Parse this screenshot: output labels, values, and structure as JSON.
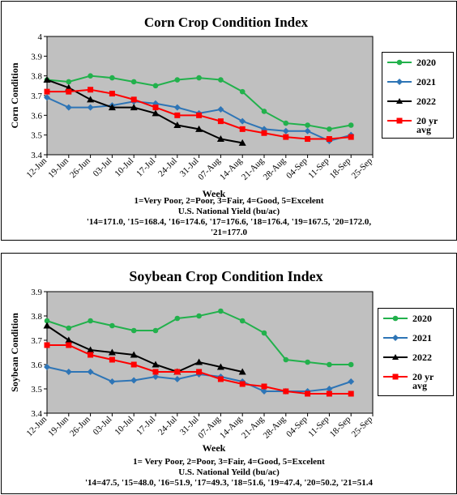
{
  "colors": {
    "plot_bg": "#c0c0c0",
    "s2020": "#22b14c",
    "s2021": "#2e75b6",
    "s2022": "#000000",
    "avg": "#ff0000"
  },
  "weeks": [
    "12-Jun",
    "19-Jun",
    "26-Jun",
    "03-Jul",
    "10-Jul",
    "17-Jul",
    "24-Jul",
    "31-Jul",
    "07-Aug",
    "14-Aug",
    "21-Aug",
    "28-Aug",
    "04-Sep",
    "11-Sep",
    "18-Sep",
    "25-Sep"
  ],
  "corn": {
    "xlabel": "Week",
    "notes": [
      "1=Very Poor, 2=Poor, 3=Fair, 4=Good, 5=Excelent",
      "U.S. National Yield (bu/ac)",
      "'14=171.0, '15=168.4, '16=174.6, '17=176.6, '18=176.4, '19=167.5, '20=172.0,",
      "'21=177.0"
    ]
  },
  "soy": {
    "xlabel": "Week",
    "notes": [
      "1= Very Poor, 2=Poor, 3=Fair, 4=Good, 5=Excelent",
      "U.S. National Yeild (bu/ac)",
      "'14=47.5, '15=48.0, '16=51.9, '17=49.3, '18=51.6, '19=47.4, '20=50.2, '21=51.4"
    ]
  },
  "chart_data": [
    {
      "type": "line",
      "title": "Corn Crop Condition Index",
      "xlabel": "Week",
      "ylabel": "Corn Condition",
      "ylim": [
        3.4,
        4
      ],
      "yticks": [
        "3.4",
        "3.5",
        "3.6",
        "3.7",
        "3.8",
        "3.9",
        "4"
      ],
      "grid": false,
      "legend": "right",
      "categories": [
        "12-Jun",
        "19-Jun",
        "26-Jun",
        "03-Jul",
        "10-Jul",
        "17-Jul",
        "24-Jul",
        "31-Jul",
        "07-Aug",
        "14-Aug",
        "21-Aug",
        "28-Aug",
        "04-Sep",
        "11-Sep",
        "18-Sep",
        "25-Sep"
      ],
      "series": [
        {
          "name": "2020",
          "marker": "circle",
          "values": [
            3.78,
            3.77,
            3.8,
            3.79,
            3.77,
            3.75,
            3.78,
            3.79,
            3.78,
            3.72,
            3.62,
            3.56,
            3.55,
            3.53,
            3.55,
            null
          ]
        },
        {
          "name": "2021",
          "marker": "diamond",
          "values": [
            3.69,
            3.64,
            3.64,
            3.65,
            3.67,
            3.66,
            3.64,
            3.61,
            3.63,
            3.57,
            3.53,
            3.52,
            3.52,
            3.47,
            3.5,
            null
          ]
        },
        {
          "name": "2022",
          "marker": "triangle",
          "values": [
            3.78,
            3.74,
            3.68,
            3.64,
            3.64,
            3.61,
            3.55,
            3.53,
            3.48,
            3.46,
            null,
            null,
            null,
            null,
            null,
            null
          ]
        },
        {
          "name": "20 yr avg",
          "marker": "square",
          "values": [
            3.72,
            3.72,
            3.73,
            3.71,
            3.68,
            3.64,
            3.6,
            3.6,
            3.57,
            3.53,
            3.51,
            3.49,
            3.48,
            3.48,
            3.49,
            null
          ]
        }
      ]
    },
    {
      "type": "line",
      "title": "Soybean Crop Condition Index",
      "xlabel": "Week",
      "ylabel": "Soybean Condition",
      "ylim": [
        3.4,
        3.9
      ],
      "yticks": [
        "3.4",
        "3.5",
        "3.6",
        "3.7",
        "3.8",
        "3.9"
      ],
      "grid": false,
      "legend": "right",
      "categories": [
        "12-Jun",
        "19-Jun",
        "26-Jun",
        "03-Jul",
        "10-Jul",
        "17-Jul",
        "24-Jul",
        "31-Jul",
        "07-Aug",
        "14-Aug",
        "21-Aug",
        "28-Aug",
        "04-Sep",
        "11-Sep",
        "18-Sep",
        "25-Sep"
      ],
      "series": [
        {
          "name": "2020",
          "marker": "circle",
          "values": [
            3.78,
            3.75,
            3.78,
            3.76,
            3.74,
            3.74,
            3.79,
            3.8,
            3.82,
            3.78,
            3.73,
            3.62,
            3.61,
            3.6,
            3.6,
            null
          ]
        },
        {
          "name": "2021",
          "marker": "diamond",
          "values": [
            3.59,
            3.57,
            3.57,
            3.53,
            3.535,
            3.55,
            3.54,
            3.56,
            3.55,
            3.53,
            3.49,
            3.49,
            3.49,
            3.5,
            3.53,
            null
          ]
        },
        {
          "name": "2022",
          "marker": "triangle",
          "values": [
            3.76,
            3.7,
            3.66,
            3.65,
            3.64,
            3.6,
            3.57,
            3.61,
            3.59,
            3.57,
            null,
            null,
            null,
            null,
            null,
            null
          ]
        },
        {
          "name": "20 yr avg",
          "marker": "square",
          "values": [
            3.68,
            3.68,
            3.64,
            3.62,
            3.6,
            3.57,
            3.57,
            3.57,
            3.54,
            3.52,
            3.51,
            3.49,
            3.48,
            3.48,
            3.48,
            null
          ]
        }
      ]
    }
  ]
}
